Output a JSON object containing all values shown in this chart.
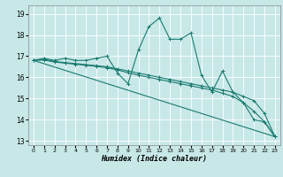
{
  "xlabel": "Humidex (Indice chaleur)",
  "background_color": "#c8e8e8",
  "grid_color": "#ffffff",
  "line_color": "#1a7a6e",
  "xlim": [
    -0.5,
    23.5
  ],
  "ylim": [
    12.8,
    19.4
  ],
  "yticks": [
    13,
    14,
    15,
    16,
    17,
    18,
    19
  ],
  "xticks": [
    0,
    1,
    2,
    3,
    4,
    5,
    6,
    7,
    8,
    9,
    10,
    11,
    12,
    13,
    14,
    15,
    16,
    17,
    18,
    19,
    20,
    21,
    22,
    23
  ],
  "series": [
    {
      "x": [
        0,
        1,
        2,
        3,
        4,
        5,
        6,
        7,
        8,
        9,
        10,
        11,
        12,
        13,
        14,
        15,
        16,
        17,
        18,
        19,
        20,
        21,
        22,
        23
      ],
      "y": [
        16.8,
        16.9,
        16.8,
        16.9,
        16.8,
        16.8,
        16.9,
        17.0,
        16.2,
        15.7,
        17.3,
        18.4,
        18.8,
        17.8,
        17.8,
        18.1,
        16.1,
        15.3,
        16.3,
        15.3,
        14.8,
        14.0,
        13.9,
        13.2
      ],
      "marker": true
    },
    {
      "x": [
        0,
        1,
        2,
        3,
        4,
        5,
        6,
        7,
        8,
        9,
        10,
        11,
        12,
        13,
        14,
        15,
        16,
        17,
        18,
        19,
        20,
        21,
        22,
        23
      ],
      "y": [
        16.8,
        16.85,
        16.75,
        16.7,
        16.65,
        16.6,
        16.55,
        16.5,
        16.4,
        16.3,
        16.2,
        16.1,
        16.0,
        15.9,
        15.8,
        15.7,
        15.6,
        15.5,
        15.4,
        15.3,
        15.1,
        14.9,
        14.3,
        13.2
      ],
      "marker": true
    },
    {
      "x": [
        0,
        1,
        2,
        3,
        4,
        5,
        6,
        7,
        8,
        9,
        10,
        11,
        12,
        13,
        14,
        15,
        16,
        17,
        18,
        19,
        20,
        21,
        22,
        23
      ],
      "y": [
        16.8,
        16.82,
        16.72,
        16.67,
        16.62,
        16.57,
        16.52,
        16.45,
        16.35,
        16.22,
        16.1,
        16.0,
        15.9,
        15.8,
        15.7,
        15.6,
        15.5,
        15.4,
        15.25,
        15.1,
        14.8,
        14.4,
        13.9,
        13.2
      ],
      "marker": true
    },
    {
      "x": [
        0,
        23
      ],
      "y": [
        16.8,
        13.2
      ],
      "marker": false
    }
  ]
}
